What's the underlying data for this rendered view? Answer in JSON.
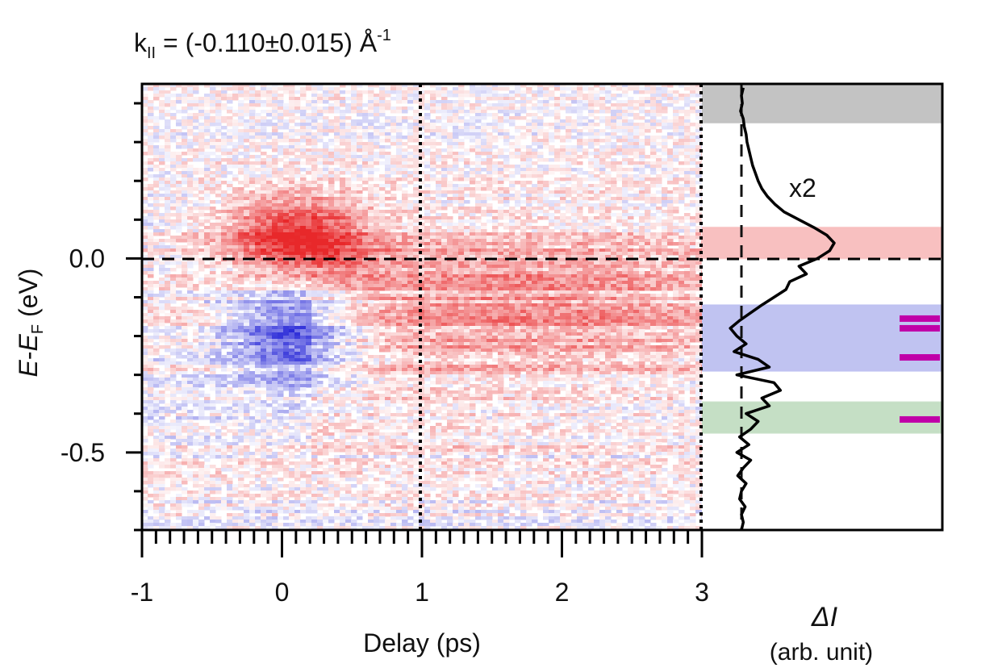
{
  "chart_data": [
    {
      "type": "heatmap",
      "title_main": "k",
      "title_sub": "II",
      "title_rest": " = (-0.110±0.015) Å",
      "title_sup": "-1",
      "xlabel": "Delay (ps)",
      "ylabel_parts": {
        "e1": "E",
        "sep": "-",
        "e2": "E",
        "sub": "F",
        "unit": " (eV)"
      },
      "xlim": [
        -1,
        3
      ],
      "ylim": [
        -0.7,
        0.45
      ],
      "xticks": [
        {
          "v": -1,
          "label": "-1"
        },
        {
          "v": 0,
          "label": "0"
        },
        {
          "v": 1,
          "label": "1"
        },
        {
          "v": 2,
          "label": "2"
        },
        {
          "v": 3,
          "label": "3"
        }
      ],
      "yticks": [
        {
          "v": 0.0,
          "label": "0.0"
        },
        {
          "v": -0.5,
          "label": "-0.5"
        }
      ],
      "x_minor_step": 0.1,
      "y_minor_step": 0.1,
      "colormap": {
        "positive": "#e8282a",
        "negative": "#2b2bd8",
        "zero": "#ffffff"
      },
      "vertical_markers_x": [
        1,
        3
      ],
      "fermi_level_y": 0.0,
      "features": [
        {
          "sign": "positive",
          "delay_center": 0.1,
          "energy_center": 0.06,
          "energy_width": 0.1,
          "delay_width": 0.5,
          "amplitude": 1.0
        },
        {
          "sign": "negative",
          "delay_center": 0.05,
          "energy_center": -0.19,
          "energy_width": 0.12,
          "delay_width": 0.45,
          "amplitude": 0.85
        },
        {
          "sign": "positive",
          "delay_center": 1.8,
          "energy_center": -0.1,
          "energy_width": 0.2,
          "delay_width": 1.6,
          "amplitude": 0.35
        }
      ]
    },
    {
      "type": "line",
      "xlabel_symbol": "ΔI",
      "xlabel_unit": "(arb. unit)",
      "annotation": "x2",
      "ylim": [
        -0.7,
        0.45
      ],
      "baseline_dashed": true,
      "energy": [
        0.44,
        0.42,
        0.4,
        0.38,
        0.36,
        0.34,
        0.32,
        0.3,
        0.28,
        0.26,
        0.24,
        0.22,
        0.2,
        0.18,
        0.16,
        0.14,
        0.12,
        0.1,
        0.08,
        0.06,
        0.04,
        0.02,
        0.0,
        -0.02,
        -0.04,
        -0.06,
        -0.08,
        -0.1,
        -0.12,
        -0.14,
        -0.16,
        -0.18,
        -0.2,
        -0.22,
        -0.24,
        -0.26,
        -0.28,
        -0.3,
        -0.32,
        -0.34,
        -0.36,
        -0.38,
        -0.4,
        -0.42,
        -0.44,
        -0.46,
        -0.48,
        -0.5,
        -0.52,
        -0.54,
        -0.56,
        -0.58,
        -0.6,
        -0.62,
        -0.64,
        -0.66,
        -0.68,
        -0.7
      ],
      "delta_i": [
        0.02,
        0.0,
        0.01,
        -0.01,
        0.02,
        0.03,
        0.05,
        0.06,
        0.08,
        0.1,
        0.12,
        0.15,
        0.18,
        0.22,
        0.28,
        0.36,
        0.46,
        0.62,
        0.78,
        0.92,
        1.0,
        0.95,
        0.82,
        0.62,
        0.7,
        0.52,
        0.48,
        0.35,
        0.22,
        0.1,
        -0.02,
        -0.12,
        -0.05,
        0.05,
        -0.08,
        0.18,
        0.3,
        -0.05,
        0.35,
        0.42,
        0.22,
        0.3,
        0.05,
        0.18,
        0.1,
        -0.02,
        0.08,
        -0.05,
        0.1,
        0.02,
        -0.04,
        0.05,
        0.0,
        -0.02,
        0.04,
        0.0,
        0.02,
        0.0
      ],
      "bands": [
        {
          "name": "gray",
          "y0": 0.35,
          "y1": 0.45,
          "color": "#bdbdbd"
        },
        {
          "name": "red",
          "y0": 0.0,
          "y1": 0.08,
          "color": "#f7b9b9"
        },
        {
          "name": "blue",
          "y0": -0.29,
          "y1": -0.12,
          "color": "#b9bdf0"
        },
        {
          "name": "green",
          "y0": -0.45,
          "y1": -0.37,
          "color": "#bfdcbf"
        }
      ],
      "markers": [
        {
          "y": -0.155,
          "color": "#c000a8"
        },
        {
          "y": -0.18,
          "color": "#c000a8"
        },
        {
          "y": -0.255,
          "color": "#c000a8"
        },
        {
          "y": -0.415,
          "color": "#c000a8"
        }
      ]
    }
  ]
}
